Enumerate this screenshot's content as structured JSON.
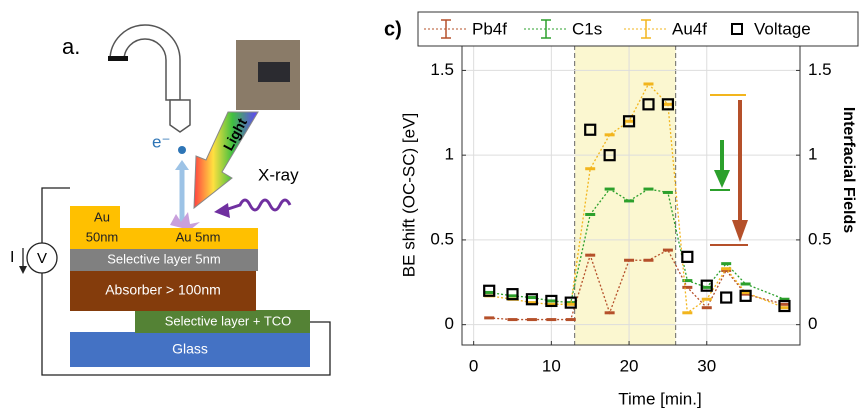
{
  "diagram": {
    "panel_label": "a.",
    "electron": "e⁻",
    "light": "Light",
    "xray": "X-ray",
    "au_thick": {
      "line1": "Au",
      "line2": "50nm"
    },
    "au_thin": "Au 5nm",
    "selective_top": "Selective layer 5nm",
    "absorber": "Absorber > 100nm",
    "selective_bottom": "Selective layer + TCO",
    "glass": "Glass",
    "current": "I",
    "voltmeter": "V"
  },
  "chart_data": {
    "type": "line",
    "panel_label": "c)",
    "xlabel": "Time [min.]",
    "ylabel": "BE shift (OC-SC) [eV]",
    "y2label": "Interfacial Fields",
    "x": [
      2,
      5,
      7.5,
      10,
      12.5,
      15,
      17.5,
      20,
      22.5,
      25,
      27.5,
      30,
      32.5,
      35,
      40
    ],
    "series": [
      {
        "name": "Pb4f",
        "color": "#b5502a",
        "values": [
          0.04,
          0.03,
          0.03,
          0.03,
          0.03,
          0.41,
          0.07,
          0.38,
          0.38,
          0.44,
          0.22,
          0.1,
          0.32,
          0.18,
          0.12
        ]
      },
      {
        "name": "C1s",
        "color": "#2ca02c",
        "values": [
          0.19,
          0.17,
          0.16,
          0.14,
          0.13,
          0.65,
          0.8,
          0.73,
          0.8,
          0.78,
          0.26,
          0.22,
          0.36,
          0.24,
          0.15
        ]
      },
      {
        "name": "Au4f",
        "color": "#f2b51d",
        "values": [
          0.17,
          0.15,
          0.13,
          0.12,
          0.12,
          0.92,
          1.12,
          1.2,
          1.42,
          1.3,
          0.07,
          0.15,
          0.33,
          0.19,
          0.1
        ]
      },
      {
        "name": "Voltage",
        "color": "#000000",
        "axis": "y2",
        "values": [
          0.2,
          0.18,
          0.15,
          0.14,
          0.13,
          1.15,
          1.0,
          1.2,
          1.3,
          1.3,
          0.4,
          0.23,
          0.16,
          0.17,
          0.11
        ]
      }
    ],
    "xlim": [
      -1.5,
      42
    ],
    "xticks": [
      0,
      10,
      20,
      30
    ],
    "ylim": [
      -0.12,
      1.65
    ],
    "yticks": [
      0,
      0.5,
      1,
      1.5
    ],
    "y2lim": [
      -0.12,
      1.65
    ],
    "y2ticks": [
      0,
      0.5,
      1,
      1.5
    ],
    "highlight_x": [
      13,
      26
    ],
    "grid": true
  }
}
